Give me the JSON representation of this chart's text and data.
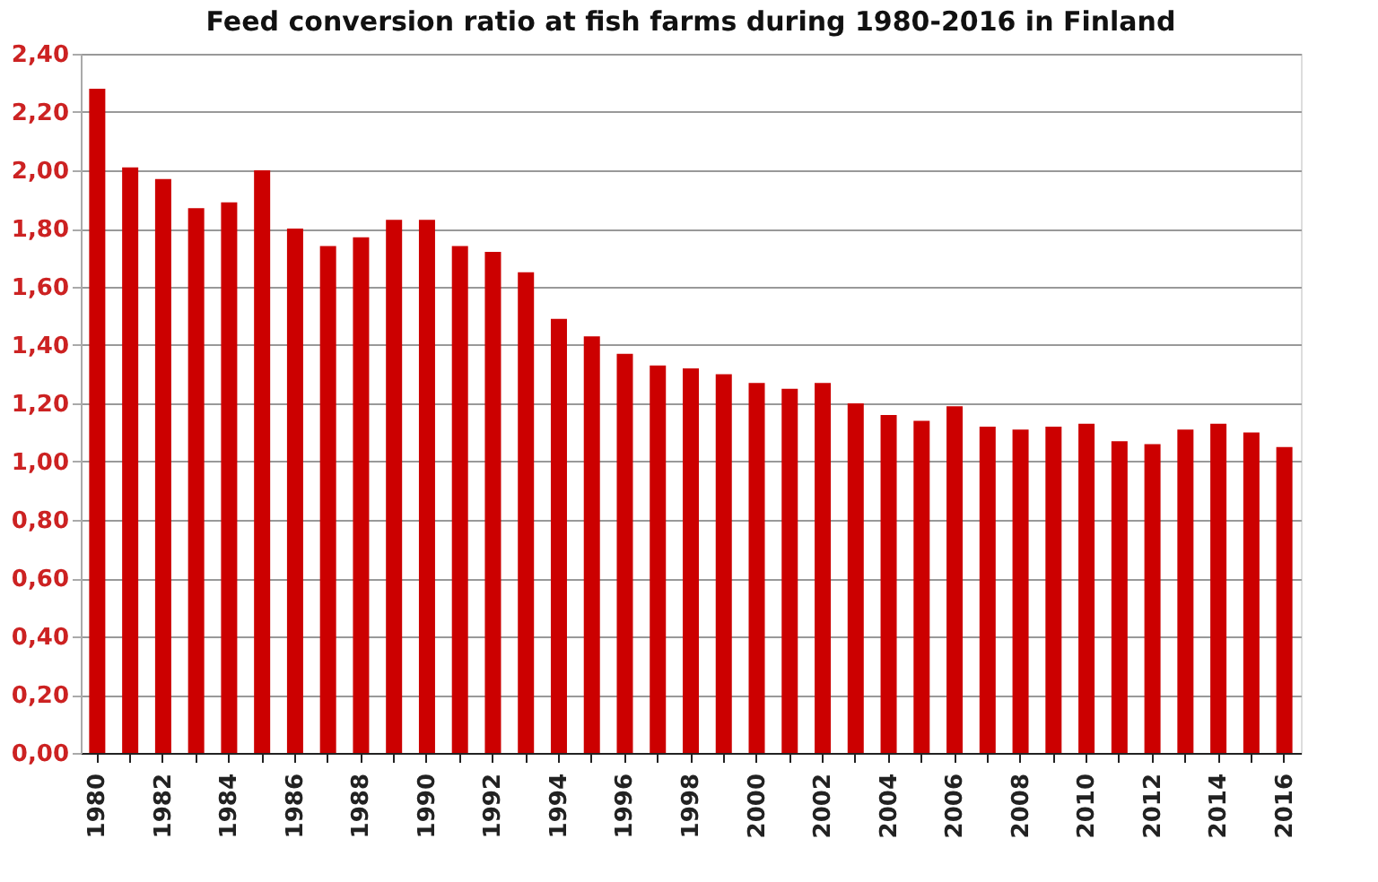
{
  "chart_data": {
    "type": "bar",
    "title": "Feed conversion ratio at fish farms during 1980-2016 in Finland",
    "categories": [
      "1980",
      null,
      "1982",
      null,
      "1984",
      null,
      "1986",
      null,
      "1988",
      null,
      "1990",
      null,
      "1992",
      null,
      "1994",
      null,
      "1996",
      null,
      "1998",
      null,
      "2000",
      null,
      "2002",
      null,
      "2004",
      null,
      "2006",
      null,
      "2008",
      null,
      "2010",
      null,
      "2012",
      null,
      "2014",
      null,
      "2016"
    ],
    "values": [
      2.28,
      2.01,
      1.97,
      1.87,
      1.89,
      2.0,
      1.8,
      1.74,
      1.77,
      1.83,
      1.83,
      1.74,
      1.72,
      1.65,
      1.49,
      1.43,
      1.37,
      1.33,
      1.32,
      1.3,
      1.27,
      1.25,
      1.27,
      1.2,
      1.16,
      1.14,
      1.19,
      1.12,
      1.11,
      1.12,
      1.13,
      1.07,
      1.06,
      1.11,
      1.13,
      1.1,
      1.05
    ],
    "color": "#cc0000",
    "ylim": [
      0,
      2.4
    ],
    "yticks": [
      {
        "value": 0,
        "label": "0,00"
      },
      {
        "value": 0.2,
        "label": "0,20"
      },
      {
        "value": 0.4,
        "label": "0,40"
      },
      {
        "value": 0.6,
        "label": "0,60"
      },
      {
        "value": 0.8,
        "label": "0,80"
      },
      {
        "value": 1.0,
        "label": "1,00"
      },
      {
        "value": 1.2,
        "label": "1,20"
      },
      {
        "value": 1.4,
        "label": "1,40"
      },
      {
        "value": 1.6,
        "label": "1,60"
      },
      {
        "value": 1.8,
        "label": "1,80"
      },
      {
        "value": 2.0,
        "label": "2,00"
      },
      {
        "value": 2.2,
        "label": "2,20"
      },
      {
        "value": 2.4,
        "label": "2,40"
      }
    ],
    "grid": "y"
  }
}
